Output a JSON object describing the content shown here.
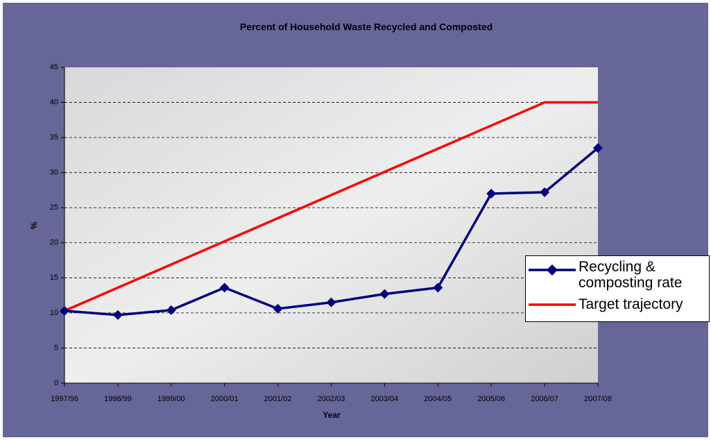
{
  "chart_data": {
    "type": "line",
    "title": "Percent of Household Waste Recycled and Composted",
    "x_label": "Year",
    "y_label": "%",
    "categories": [
      "1997/98",
      "1998/99",
      "1999/00",
      "2000/01",
      "2001/02",
      "2002/03",
      "2003/04",
      "2004/05",
      "2005/06",
      "2006/07",
      "2007/08"
    ],
    "series": [
      {
        "name": "Recycling & composting rate",
        "color": "#000080",
        "marker": "diamond",
        "values": [
          10.3,
          9.7,
          10.4,
          13.6,
          10.6,
          11.5,
          12.7,
          13.6,
          27.0,
          27.2,
          33.5
        ]
      },
      {
        "name": "Target trajectory",
        "color": "#ff0000",
        "values": [
          10.3,
          13.6,
          16.9,
          20.2,
          23.5,
          26.8,
          30.1,
          33.4,
          36.7,
          40,
          40
        ]
      }
    ],
    "ylim": [
      0,
      45
    ],
    "yticks": [
      0,
      5,
      10,
      15,
      20,
      25,
      30,
      35,
      40,
      45
    ],
    "grid": true
  }
}
